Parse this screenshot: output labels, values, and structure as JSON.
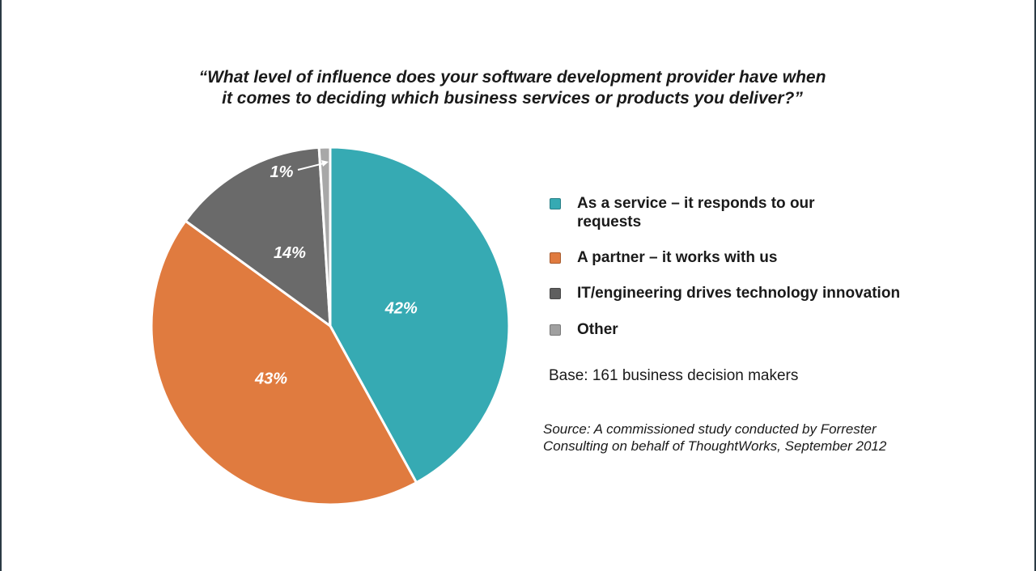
{
  "chart_data": {
    "type": "pie",
    "title": [
      "“What level of influence does your software development provider have when",
      "it comes to deciding which business services or products you deliver?”"
    ],
    "slices": [
      {
        "label": "As a service – it responds to our requests",
        "value": 42,
        "display": "42%",
        "color": "#36aab3"
      },
      {
        "label": "A partner – it works with us",
        "value": 43,
        "display": "43%",
        "color": "#e07b3f"
      },
      {
        "label": "IT/engineering drives technology innovation",
        "value": 14,
        "display": "14%",
        "color": "#6a6a6a"
      },
      {
        "label": "Other",
        "value": 1,
        "display": "1%",
        "color": "#a8a8a8"
      }
    ],
    "legend": {
      "placement": "right",
      "items": [
        {
          "label": "As a service – it responds to our requests",
          "color": "#36aab3"
        },
        {
          "label": "A partner – it works with us",
          "color": "#e07b3f"
        },
        {
          "label": "IT/engineering drives technology innovation",
          "color": "#5f5f5f"
        },
        {
          "label": "Other",
          "color": "#a0a0a0"
        }
      ]
    },
    "base_note": "Base: 161 business decision makers",
    "source_note": [
      "Source: A commissioned study conducted by Forrester",
      "Consulting on behalf of ThoughtWorks, September 2012"
    ]
  }
}
